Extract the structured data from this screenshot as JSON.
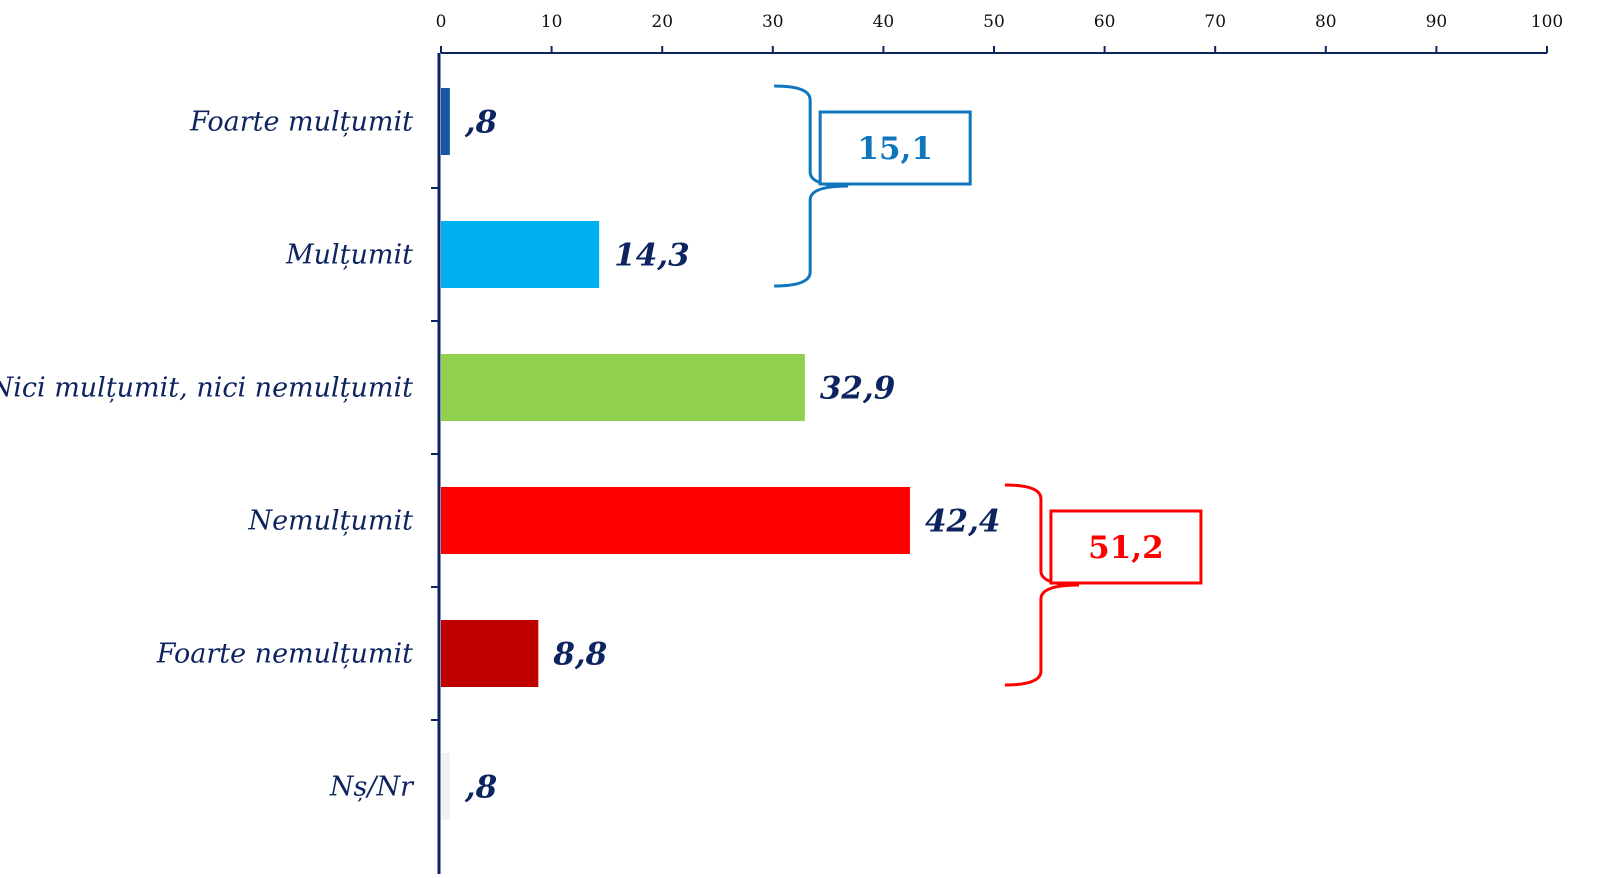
{
  "chart_data": {
    "type": "bar",
    "orientation": "horizontal",
    "categories": [
      "Foarte mulțumit",
      "Mulțumit",
      "Nici mulțumit, nici nemulțumit",
      "Nemulțumit",
      "Foarte nemulțumit",
      "Nș/Nr"
    ],
    "values": [
      0.8,
      14.3,
      32.9,
      42.4,
      8.8,
      0.8
    ],
    "value_labels": [
      ",8",
      "14,3",
      "32,9",
      "42,4",
      "8,8",
      ",8"
    ],
    "colors": [
      "#1556A6",
      "#00B0F0",
      "#92D050",
      "#FF0000",
      "#C00000",
      "#F2F2F2"
    ],
    "xlim": [
      0,
      100
    ],
    "x_ticks": [
      0,
      10,
      20,
      30,
      40,
      50,
      60,
      70,
      80,
      90,
      100
    ],
    "x_axis_position": "top",
    "grid": false,
    "title": "",
    "xlabel": "",
    "ylabel": "",
    "annotations": [
      {
        "label": "15,1",
        "groups": [
          0,
          1
        ],
        "color": "#0F75BD"
      },
      {
        "label": "51,2",
        "groups": [
          3,
          4
        ],
        "color": "#FF0000"
      }
    ],
    "text_color": "#0D2461",
    "axis_color": "#0D2461"
  }
}
